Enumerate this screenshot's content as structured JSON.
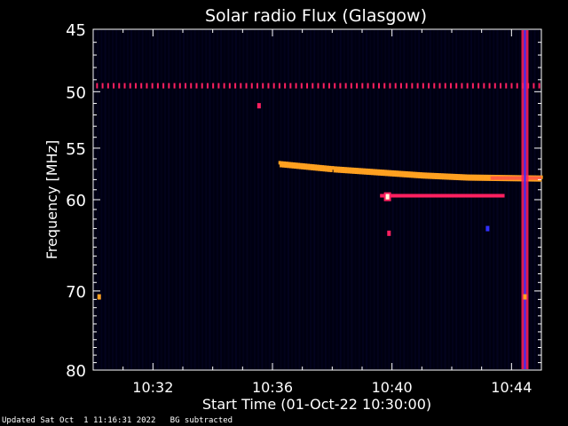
{
  "chart_data": {
    "type": "heatmap",
    "title": "Solar radio Flux (Glasgow)",
    "xlabel": "Start Time (01-Oct-22 10:30:00)",
    "ylabel": "Frequency [MHz]",
    "x_range_minutes": [
      0,
      15
    ],
    "x_ticks": [
      {
        "minute": 2,
        "label": "10:32"
      },
      {
        "minute": 6,
        "label": "10:36"
      },
      {
        "minute": 10,
        "label": "10:40"
      },
      {
        "minute": 14,
        "label": "10:44"
      }
    ],
    "ylim": [
      45,
      80
    ],
    "y_scale": "log",
    "y_inverted": true,
    "y_ticks": [
      45,
      50,
      55,
      60,
      70,
      80
    ],
    "colormap": [
      "#000010",
      "#0000a0",
      "#3030ff",
      "#ff2060",
      "#ffa020",
      "#ffffe0"
    ],
    "features": [
      {
        "kind": "dotted-line",
        "freq": 49.5,
        "t_start": 0,
        "t_end": 15,
        "intensity": 0.55
      },
      {
        "kind": "drift",
        "points": [
          [
            6.2,
            56.5
          ],
          [
            8.0,
            57.0
          ],
          [
            9.5,
            57.3
          ],
          [
            11.0,
            57.6
          ],
          [
            12.5,
            57.8
          ],
          [
            15.0,
            57.9
          ]
        ],
        "intensity": 0.7
      },
      {
        "kind": "line",
        "freq": 59.6,
        "t_start": 9.6,
        "t_end": 13.7,
        "intensity": 0.6
      },
      {
        "kind": "vertical",
        "t": 14.45,
        "freq_start": 45,
        "freq_end": 80,
        "intensity": 0.5
      },
      {
        "kind": "spot",
        "t": 9.85,
        "freq": 59.7,
        "intensity": 1.0
      },
      {
        "kind": "spot",
        "t": 0.2,
        "freq": 70.7,
        "intensity": 0.8
      },
      {
        "kind": "spot",
        "t": 14.45,
        "freq": 70.7,
        "intensity": 0.8
      },
      {
        "kind": "spot",
        "t": 5.55,
        "freq": 51.2,
        "intensity": 0.5
      },
      {
        "kind": "spot",
        "t": 9.9,
        "freq": 63.5,
        "intensity": 0.5
      },
      {
        "kind": "spot",
        "t": 13.2,
        "freq": 63.0,
        "intensity": 0.4
      }
    ]
  },
  "footer": {
    "updated": "Updated Sat Oct  1 11:16:31 2022",
    "mode": "BG subtracted"
  }
}
